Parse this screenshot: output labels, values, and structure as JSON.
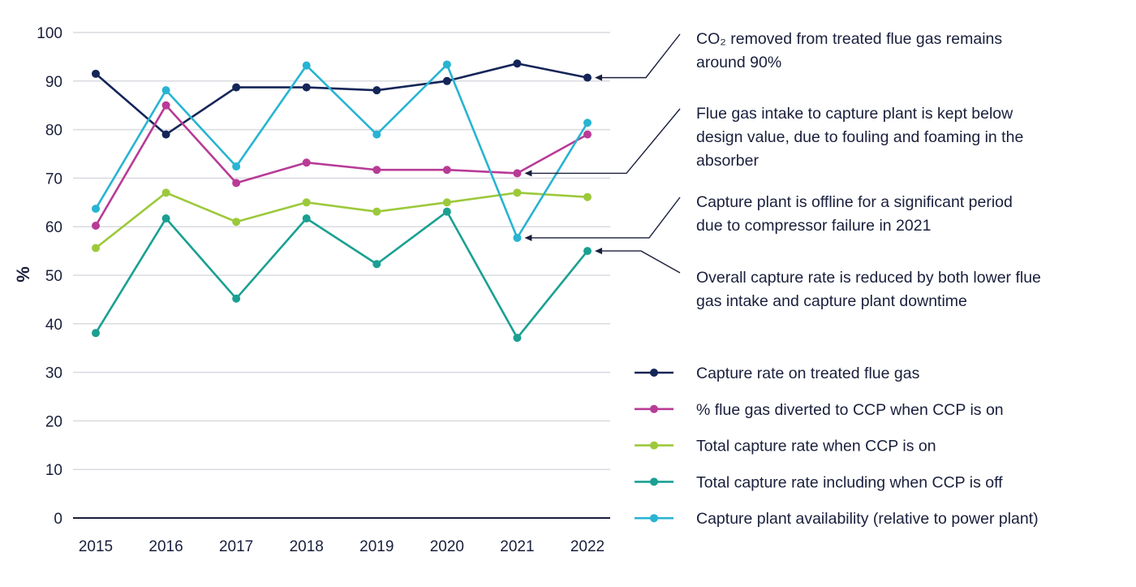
{
  "chart_data": {
    "type": "line",
    "title": "",
    "xlabel": "",
    "ylabel": "%",
    "ylim": [
      0,
      100
    ],
    "yticks": [
      0,
      10,
      20,
      30,
      40,
      50,
      60,
      70,
      80,
      90,
      100
    ],
    "grid": true,
    "legend_position": "right",
    "categories": [
      "2015",
      "2016",
      "2017",
      "2018",
      "2019",
      "2020",
      "2021",
      "2022"
    ],
    "series": [
      {
        "name": "Capture rate on treated flue gas",
        "color": "#142558",
        "values": [
          91.5,
          79,
          88.7,
          88.7,
          88.1,
          90,
          93.6,
          90.7
        ]
      },
      {
        "name": "% flue gas diverted to CCP when CCP is on",
        "color": "#b83b96",
        "values": [
          60.2,
          85,
          69,
          73.2,
          71.7,
          71.7,
          71,
          79
        ]
      },
      {
        "name": "Total capture rate when CCP is on",
        "color": "#9cc93b",
        "values": [
          55.6,
          67,
          61,
          65,
          63.1,
          65,
          67,
          66.1
        ]
      },
      {
        "name": "Total capture rate including when CCP is off",
        "color": "#1aa092",
        "values": [
          38.1,
          61.7,
          45.2,
          61.7,
          52.3,
          63.1,
          37.1,
          55
        ]
      },
      {
        "name": "Capture plant availability (relative to power plant)",
        "color": "#28b4d2",
        "values": [
          63.7,
          88.1,
          72.4,
          93.2,
          79,
          93.4,
          57.7,
          81.4
        ]
      }
    ],
    "annotations": [
      {
        "lines": [
          "CO₂ removed from treated flue gas remains",
          "around 90%"
        ],
        "target_series": 0,
        "target_category": "2022"
      },
      {
        "lines": [
          "Flue gas intake to capture plant is kept below",
          "design value, due to fouling and foaming in the",
          "absorber"
        ],
        "target_series": 1,
        "target_category": "2021"
      },
      {
        "lines": [
          "Capture plant is offline for a significant period",
          "due to compressor failure in 2021"
        ],
        "target_series": 4,
        "target_category": "2021"
      },
      {
        "lines": [
          "Overall capture rate is reduced by both lower flue",
          "gas intake and capture plant downtime"
        ],
        "target_series": 3,
        "target_category": "2022"
      }
    ]
  }
}
